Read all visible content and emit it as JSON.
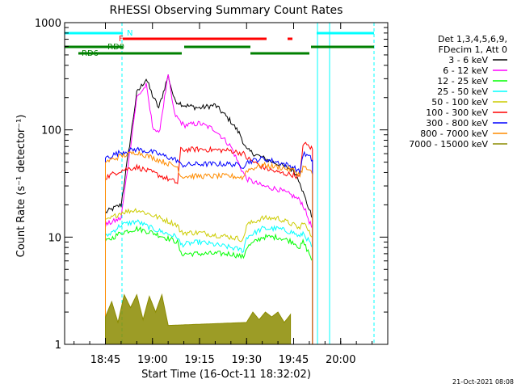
{
  "chart_data": {
    "type": "line",
    "title": "RHESSI Observing Summary Count Rates",
    "xlabel": "Start Time (16-Oct-11 18:32:02)",
    "ylabel": "Count Rate (s⁻¹ detector⁻¹)",
    "y_scale": "log",
    "ylim": [
      1,
      1000
    ],
    "xlim": [
      "18:32",
      "20:15"
    ],
    "x_ticks": [
      "18:45",
      "19:00",
      "19:15",
      "19:30",
      "19:45",
      "20:00"
    ],
    "y_ticks": [
      "1",
      "10",
      "100",
      "1000"
    ],
    "legend": {
      "placement": "top-right",
      "header": [
        "Det 1,3,4,5,6,9,",
        "FDecim 1, Att 0"
      ]
    },
    "series": [
      {
        "name": "3 - 6 keV",
        "color": "#000000",
        "x": [
          "18:45",
          "18:50",
          "18:55",
          "18:58",
          "19:00",
          "19:02",
          "19:05",
          "19:07",
          "19:10",
          "19:15",
          "19:20",
          "19:25",
          "19:28",
          "19:30",
          "19:35",
          "19:40",
          "19:45",
          "19:47",
          "19:48",
          "19:50",
          "19:51"
        ],
        "values": [
          17,
          20,
          220,
          300,
          210,
          160,
          320,
          190,
          170,
          160,
          170,
          120,
          90,
          65,
          55,
          48,
          42,
          33,
          26,
          18,
          15
        ]
      },
      {
        "name": "6 - 12 keV",
        "color": "#ff00ff",
        "x": [
          "18:45",
          "18:50",
          "18:55",
          "18:58",
          "19:00",
          "19:02",
          "19:05",
          "19:07",
          "19:10",
          "19:15",
          "19:20",
          "19:25",
          "19:28",
          "19:30",
          "19:35",
          "19:40",
          "19:45",
          "19:47",
          "19:48",
          "19:50",
          "19:51"
        ],
        "values": [
          13,
          15,
          200,
          260,
          110,
          90,
          320,
          140,
          110,
          115,
          100,
          70,
          45,
          35,
          30,
          28,
          24,
          22,
          20,
          14,
          12
        ]
      },
      {
        "name": "12 - 25 keV",
        "color": "#00ff00",
        "x": [
          "18:45",
          "18:50",
          "18:55",
          "19:00",
          "19:08",
          "19:09",
          "19:15",
          "19:25",
          "19:29",
          "19:30",
          "19:35",
          "19:40",
          "19:45",
          "19:47",
          "19:48",
          "19:50",
          "19:51"
        ],
        "values": [
          9,
          11,
          12,
          11,
          9,
          7,
          7,
          7,
          6.5,
          8,
          10,
          10,
          9,
          8,
          9,
          7,
          6
        ]
      },
      {
        "name": "25 - 50 keV",
        "color": "#00ffff",
        "x": [
          "18:45",
          "18:50",
          "18:55",
          "19:00",
          "19:08",
          "19:09",
          "19:15",
          "19:25",
          "19:29",
          "19:30",
          "19:35",
          "19:40",
          "19:45",
          "19:47",
          "19:48",
          "19:50",
          "19:51"
        ],
        "values": [
          10,
          13,
          14,
          12,
          10,
          8.5,
          9,
          8,
          7.5,
          10,
          12,
          12,
          11,
          10,
          11,
          9,
          8
        ]
      },
      {
        "name": "50 - 100 keV",
        "color": "#cccc00",
        "x": [
          "18:45",
          "18:50",
          "18:55",
          "19:00",
          "19:08",
          "19:09",
          "19:15",
          "19:25",
          "19:29",
          "19:30",
          "19:35",
          "19:40",
          "19:45",
          "19:47",
          "19:48",
          "19:50",
          "19:51"
        ],
        "values": [
          14,
          17,
          18,
          16,
          13,
          11,
          11,
          10,
          9.5,
          13,
          15,
          15,
          13,
          12,
          14,
          11,
          10
        ]
      },
      {
        "name": "100 - 300 keV",
        "color": "#ff0000",
        "x": [
          "18:45",
          "18:50",
          "18:55",
          "19:00",
          "19:08",
          "19:09",
          "19:15",
          "19:25",
          "19:29",
          "19:30",
          "19:35",
          "19:40",
          "19:45",
          "19:47",
          "19:48",
          "19:50",
          "19:51"
        ],
        "values": [
          36,
          42,
          45,
          40,
          32,
          65,
          66,
          64,
          60,
          55,
          45,
          40,
          38,
          36,
          75,
          70,
          66
        ]
      },
      {
        "name": "300 - 800 keV",
        "color": "#0000ff",
        "x": [
          "18:45",
          "18:50",
          "18:55",
          "19:00",
          "19:08",
          "19:09",
          "19:15",
          "19:25",
          "19:29",
          "19:30",
          "19:35",
          "19:40",
          "19:45",
          "19:47",
          "19:48",
          "19:50",
          "19:51"
        ],
        "values": [
          55,
          62,
          66,
          62,
          52,
          47,
          48,
          48,
          46,
          50,
          54,
          50,
          45,
          40,
          60,
          56,
          52
        ]
      },
      {
        "name": "800 - 7000 keV",
        "color": "#ff8c00",
        "x": [
          "18:45",
          "18:50",
          "18:55",
          "19:00",
          "19:08",
          "19:09",
          "19:15",
          "19:25",
          "19:29",
          "19:30",
          "19:35",
          "19:40",
          "19:45",
          "19:47",
          "19:48",
          "19:50",
          "19:51"
        ],
        "values": [
          50,
          57,
          62,
          55,
          45,
          37,
          37,
          37,
          36,
          42,
          47,
          45,
          42,
          38,
          45,
          42,
          38
        ]
      },
      {
        "name": "7000 - 15000 keV",
        "color": "#8b8b00",
        "x": [
          "18:45",
          "18:47",
          "18:49",
          "18:51",
          "18:53",
          "18:55",
          "18:57",
          "18:59",
          "19:01",
          "19:03",
          "19:05",
          "19:30",
          "19:32",
          "19:34",
          "19:36",
          "19:38",
          "19:40",
          "19:42",
          "19:44"
        ],
        "values": [
          1.8,
          2.5,
          1.6,
          2.9,
          2.2,
          2.9,
          1.7,
          2.8,
          2.0,
          2.9,
          1.5,
          1.6,
          2.0,
          1.7,
          2.0,
          1.8,
          2.0,
          1.6,
          1.9
        ]
      }
    ],
    "flags": [
      {
        "label": "N",
        "color": "#00ffff"
      },
      {
        "label": "F",
        "color": "#ff0000"
      },
      {
        "label": "RD0",
        "color": "#008000"
      },
      {
        "label": "RD6",
        "color": "#008000"
      }
    ],
    "footer": "21-Oct-2021 08:08"
  }
}
